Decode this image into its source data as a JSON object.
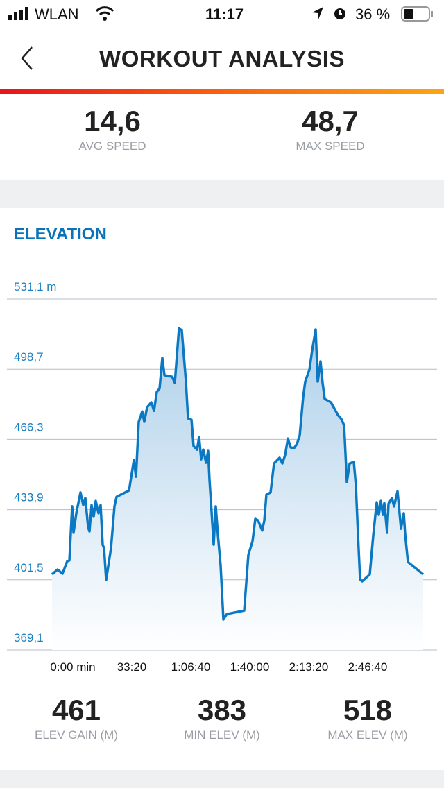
{
  "status_bar": {
    "carrier": "WLAN",
    "time": "11:17",
    "battery": "36 %",
    "icons": [
      "signal-icon",
      "wifi-icon",
      "location-icon",
      "alarm-icon",
      "battery-icon"
    ]
  },
  "header": {
    "title": "WORKOUT ANALYSIS",
    "back_icon": "chevron-left-icon"
  },
  "speed": {
    "avg_value": "14,6",
    "avg_label": "AVG SPEED",
    "max_value": "48,7",
    "max_label": "MAX SPEED"
  },
  "elevation": {
    "title": "ELEVATION",
    "gain_value": "461",
    "gain_label": "ELEV GAIN (M)",
    "min_value": "383",
    "min_label": "MIN ELEV (M)",
    "max_value": "518",
    "max_label": "MAX ELEV (M)"
  },
  "colors": {
    "accent": "#0a72b8",
    "line": "#0a78c2"
  },
  "chart_data": {
    "type": "area",
    "ylim": [
      369.1,
      531.1
    ],
    "y_ticks": [
      531.1,
      498.7,
      466.3,
      433.9,
      401.5,
      369.1
    ],
    "y_tick_labels": [
      "531,1 m",
      "498,7",
      "466,3",
      "433,9",
      "401,5",
      "369,1"
    ],
    "x_ticks": [
      0,
      2000,
      4000,
      6000,
      8000,
      10000
    ],
    "x_tick_labels": [
      "0:00 min",
      "33:20",
      "1:06:40",
      "1:40:00",
      "2:13:20",
      "2:46:40"
    ],
    "grid": true,
    "series": [
      {
        "t": [
          0,
          188,
          353,
          518,
          588,
          682,
          729,
          824,
          965,
          1059,
          1129,
          1224,
          1271,
          1341,
          1412,
          1482,
          1576,
          1647,
          1718,
          1765,
          1835,
          2000,
          2118,
          2188,
          2612,
          2776,
          2847,
          2941,
          3059,
          3129,
          3224,
          3365,
          3459,
          3553,
          3647,
          3741,
          3812,
          4071,
          4165,
          4306,
          4400,
          4541,
          4612,
          4729,
          4800,
          4918,
          4988,
          5059,
          5129,
          5224,
          5294,
          5341,
          5412,
          5482,
          5553,
          5624,
          5718,
          5812,
          5929,
          6518,
          6659,
          6800,
          6894,
          6988,
          7129,
          7200,
          7271,
          7412,
          7529,
          7718,
          7812,
          7906,
          8000,
          8094,
          8212,
          8306,
          8400,
          8518,
          8588,
          8729,
          8824,
          8941,
          9012,
          9106,
          9176,
          9247,
          9459,
          9694,
          9812,
          9906,
          10000,
          10094,
          10235,
          10306,
          10376,
          10447,
          10518,
          10776,
          10894,
          11012,
          11082,
          11153,
          11224,
          11271,
          11365,
          11412,
          11529,
          11600,
          11718,
          11835,
          11929,
          11976,
          12071,
          12588
        ],
        "elev": [
          404.0,
          406.2,
          404.3,
          410.1,
          410.4,
          435.4,
          423.2,
          432.2,
          441.8,
          436.0,
          439.2,
          425.8,
          423.8,
          436.0,
          430.6,
          437.9,
          432.2,
          436.0,
          417.7,
          416.1,
          401.4,
          416.1,
          435.4,
          439.8,
          442.7,
          456.8,
          449.1,
          474.4,
          479.2,
          474.4,
          481.1,
          483.4,
          479.5,
          488.2,
          489.8,
          503.9,
          495.9,
          495.2,
          492.4,
          517.6,
          516.7,
          493.0,
          476.0,
          475.4,
          463.2,
          461.6,
          467.4,
          457.1,
          461.6,
          455.5,
          461.0,
          447.5,
          432.8,
          417.7,
          435.4,
          422.5,
          408.1,
          383.2,
          385.7,
          387.3,
          413.0,
          419.3,
          429.6,
          428.9,
          424.2,
          428.9,
          440.8,
          441.8,
          455.2,
          457.8,
          455.2,
          459.1,
          466.7,
          462.6,
          462.3,
          464.2,
          468.0,
          485.9,
          493.0,
          498.4,
          507.4,
          517.0,
          493.0,
          502.3,
          492.4,
          485.0,
          483.4,
          477.6,
          475.7,
          472.8,
          446.6,
          455.2,
          455.9,
          445.0,
          422.5,
          401.7,
          400.8,
          404.0,
          421.9,
          437.3,
          431.5,
          437.9,
          431.5,
          436.9,
          423.2,
          436.6,
          439.2,
          435.4,
          442.4,
          425.1,
          432.2,
          422.5,
          409.7,
          404.0
        ]
      }
    ]
  }
}
